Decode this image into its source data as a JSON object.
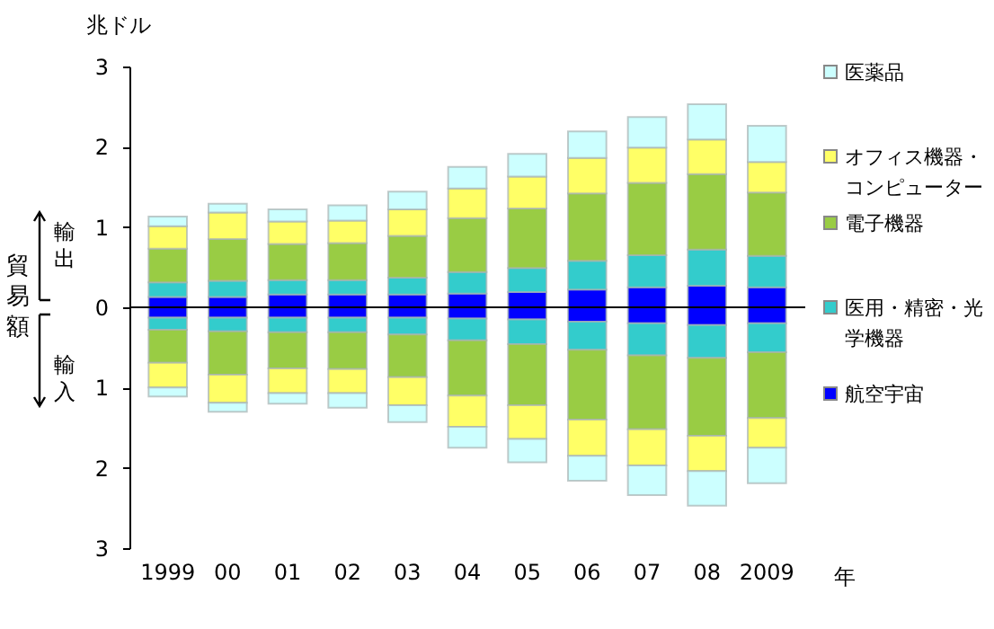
{
  "chart_data": {
    "type": "bar",
    "stacked": true,
    "title": "兆ドル",
    "xlabel": "年",
    "ylabel": "貿易額",
    "annotations": [
      "輸出",
      "輸入"
    ],
    "categories": [
      "1999",
      "00",
      "01",
      "02",
      "03",
      "04",
      "05",
      "06",
      "07",
      "08",
      "2009"
    ],
    "series": [
      {
        "name": "航空宇宙",
        "color": "#0000ff",
        "values": [
          0.13,
          0.13,
          0.16,
          0.16,
          0.16,
          0.17,
          0.19,
          0.22,
          0.25,
          0.27,
          0.25
        ]
      },
      {
        "name": "医用・精密・光学機器",
        "color": "#33cccc",
        "values": [
          0.18,
          0.2,
          0.18,
          0.18,
          0.21,
          0.27,
          0.3,
          0.36,
          0.4,
          0.45,
          0.39
        ]
      },
      {
        "name": "電子機器",
        "color": "#99cc44",
        "values": [
          0.42,
          0.52,
          0.45,
          0.46,
          0.52,
          0.67,
          0.74,
          0.84,
          0.9,
          0.94,
          0.79
        ]
      },
      {
        "name": "オフィス機器・コンピューター",
        "color": "#ffff66",
        "values": [
          0.28,
          0.33,
          0.28,
          0.28,
          0.33,
          0.37,
          0.4,
          0.44,
          0.44,
          0.43,
          0.38
        ]
      },
      {
        "name": "医薬品",
        "color": "#ccffff",
        "values": [
          0.12,
          0.11,
          0.15,
          0.19,
          0.22,
          0.27,
          0.28,
          0.33,
          0.38,
          0.44,
          0.45
        ]
      },
      {
        "color": "#0000ff",
        "values": [
          -0.13,
          -0.13,
          -0.13,
          -0.13,
          -0.13,
          -0.14,
          -0.15,
          -0.18,
          -0.2,
          -0.22,
          -0.2
        ]
      },
      {
        "color": "#33cccc",
        "values": [
          -0.15,
          -0.17,
          -0.18,
          -0.18,
          -0.21,
          -0.27,
          -0.31,
          -0.35,
          -0.4,
          -0.41,
          -0.36
        ]
      },
      {
        "color": "#99cc44",
        "values": [
          -0.41,
          -0.54,
          -0.45,
          -0.46,
          -0.53,
          -0.69,
          -0.76,
          -0.87,
          -0.92,
          -0.97,
          -0.82
        ]
      },
      {
        "color": "#ffff66",
        "values": [
          -0.31,
          -0.35,
          -0.31,
          -0.3,
          -0.35,
          -0.39,
          -0.42,
          -0.45,
          -0.45,
          -0.44,
          -0.37
        ]
      },
      {
        "color": "#ccffff",
        "values": [
          -0.11,
          -0.11,
          -0.13,
          -0.18,
          -0.21,
          -0.26,
          -0.29,
          -0.31,
          -0.37,
          -0.43,
          -0.44
        ]
      }
    ],
    "ylim": [
      -3,
      3
    ],
    "yticks": [
      {
        "value": -3,
        "label": "3"
      },
      {
        "value": -2,
        "label": "2"
      },
      {
        "value": -1,
        "label": "1"
      },
      0,
      1,
      2,
      3
    ],
    "ref_lines": [
      {
        "axis": "y",
        "value": 0,
        "color": "#000000"
      }
    ],
    "legend": "right"
  }
}
